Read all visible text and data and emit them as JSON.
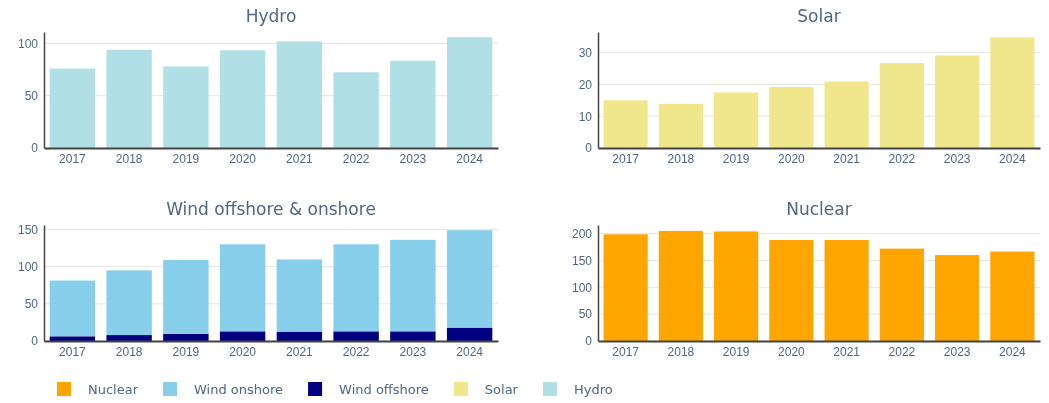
{
  "chart_data": [
    {
      "type": "bar",
      "title": "Hydro",
      "categories": [
        "2017",
        "2018",
        "2019",
        "2020",
        "2021",
        "2022",
        "2023",
        "2024"
      ],
      "series": [
        {
          "name": "Hydro",
          "color": "#b0e0e6",
          "values": [
            76,
            94,
            78,
            93.5,
            102,
            72.5,
            83.5,
            106
          ]
        }
      ],
      "ylim": [
        0,
        111
      ],
      "yticks": [
        0,
        50,
        100
      ],
      "grid": "y",
      "legend": "bottom"
    },
    {
      "type": "bar",
      "title": "Solar",
      "categories": [
        "2017",
        "2018",
        "2019",
        "2020",
        "2021",
        "2022",
        "2023",
        "2024"
      ],
      "series": [
        {
          "name": "Solar",
          "color": "#f0e68c",
          "values": [
            15,
            13.9,
            17.5,
            19.2,
            20.9,
            26.7,
            29.1,
            34.8
          ]
        }
      ],
      "ylim": [
        0,
        36.5
      ],
      "yticks": [
        0,
        10,
        20,
        30
      ],
      "grid": "y",
      "legend": "bottom"
    },
    {
      "type": "bar",
      "title": "Wind offshore & onshore",
      "categories": [
        "2017",
        "2018",
        "2019",
        "2020",
        "2021",
        "2022",
        "2023",
        "2024"
      ],
      "stacked": true,
      "series": [
        {
          "name": "Wind offshore",
          "color": "#000080",
          "values": [
            6.3,
            8,
            9.5,
            13,
            12.6,
            13,
            13,
            18
          ]
        },
        {
          "name": "Wind onshore",
          "color": "#87ceeb",
          "values": [
            75,
            87,
            99.5,
            117,
            97,
            117,
            123,
            131
          ]
        }
      ],
      "ylim": [
        0,
        156
      ],
      "yticks": [
        0,
        50,
        100,
        150
      ],
      "grid": "y",
      "legend": "bottom"
    },
    {
      "type": "bar",
      "title": "Nuclear",
      "categories": [
        "2017",
        "2018",
        "2019",
        "2020",
        "2021",
        "2022",
        "2023",
        "2024"
      ],
      "series": [
        {
          "name": "Nuclear",
          "color": "#ffa500",
          "values": [
            198.7,
            205,
            204,
            188,
            188,
            172,
            160,
            166.5
          ]
        }
      ],
      "ylim": [
        0,
        216
      ],
      "yticks": [
        0,
        50,
        100,
        150,
        200
      ],
      "grid": "y",
      "legend": "bottom"
    }
  ]
}
